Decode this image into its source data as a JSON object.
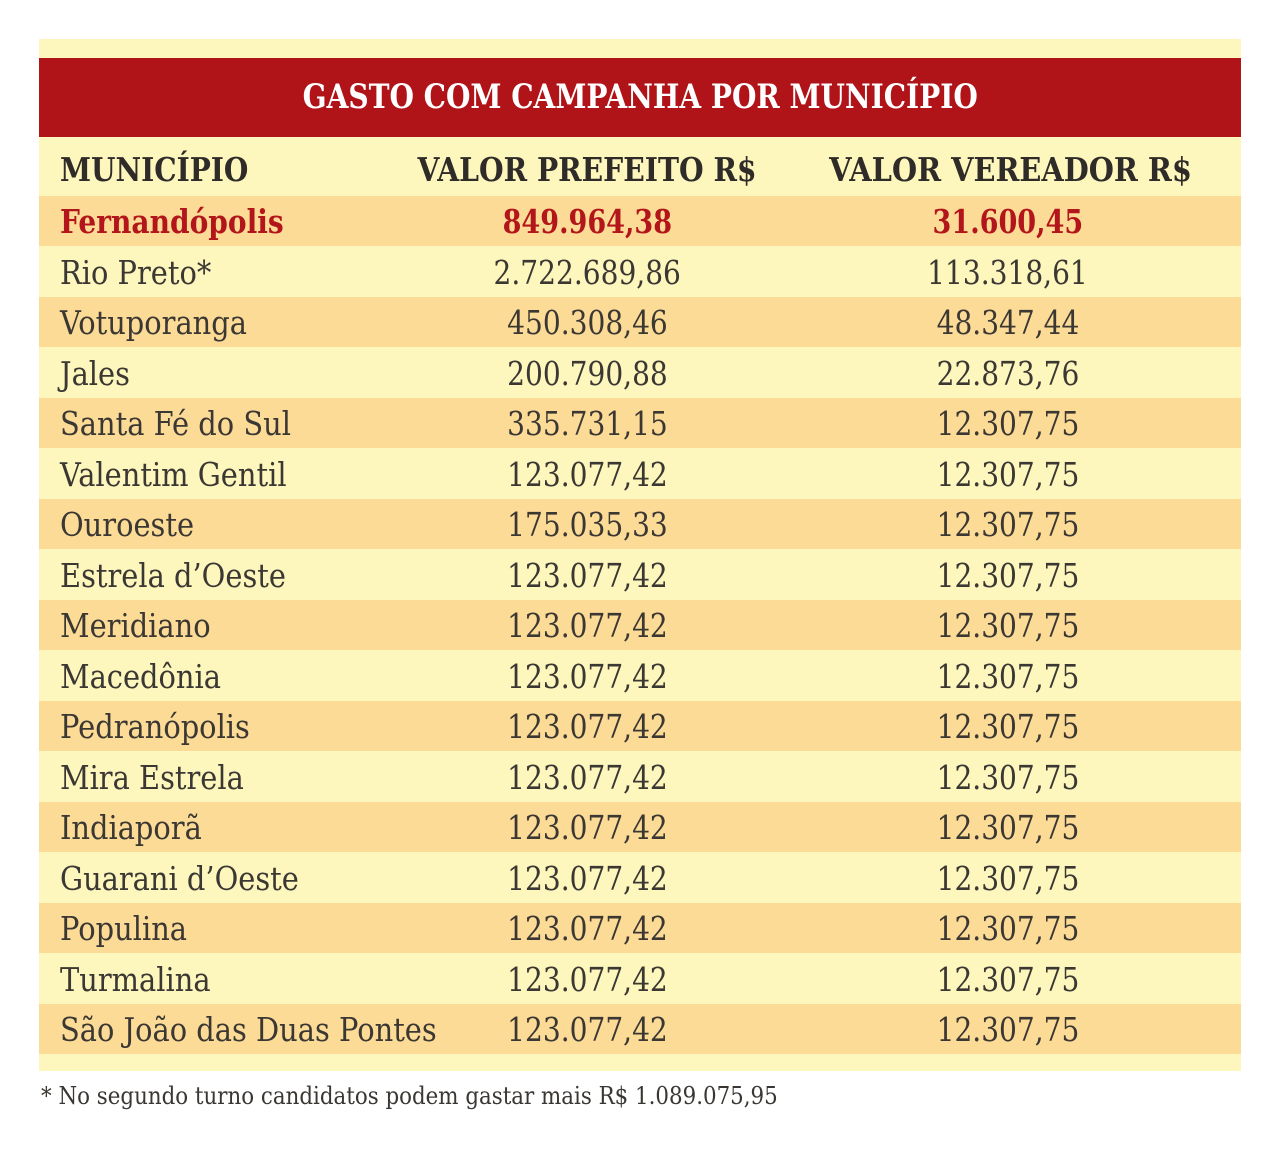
{
  "chart_data": {
    "type": "table",
    "title": "GASTO COM CAMPANHA POR MUNICÍPIO",
    "columns": [
      "MUNICÍPIO",
      "VALOR PREFEITO R$",
      "VALOR VEREADOR R$"
    ],
    "rows": [
      {
        "municipio": "Fernandópolis",
        "valor_prefeito": "849.964,38",
        "valor_vereador": "31.600,45",
        "highlight": true
      },
      {
        "municipio": "Rio Preto*",
        "valor_prefeito": "2.722.689,86",
        "valor_vereador": "113.318,61",
        "highlight": false
      },
      {
        "municipio": "Votuporanga",
        "valor_prefeito": "450.308,46",
        "valor_vereador": "48.347,44",
        "highlight": false
      },
      {
        "municipio": "Jales",
        "valor_prefeito": "200.790,88",
        "valor_vereador": "22.873,76",
        "highlight": false
      },
      {
        "municipio": "Santa Fé do Sul",
        "valor_prefeito": "335.731,15",
        "valor_vereador": "12.307,75",
        "highlight": false
      },
      {
        "municipio": "Valentim Gentil",
        "valor_prefeito": "123.077,42",
        "valor_vereador": "12.307,75",
        "highlight": false
      },
      {
        "municipio": "Ouroeste",
        "valor_prefeito": "175.035,33",
        "valor_vereador": "12.307,75",
        "highlight": false
      },
      {
        "municipio": "Estrela d’Oeste",
        "valor_prefeito": "123.077,42",
        "valor_vereador": "12.307,75",
        "highlight": false
      },
      {
        "municipio": "Meridiano",
        "valor_prefeito": "123.077,42",
        "valor_vereador": "12.307,75",
        "highlight": false
      },
      {
        "municipio": "Macedônia",
        "valor_prefeito": "123.077,42",
        "valor_vereador": "12.307,75",
        "highlight": false
      },
      {
        "municipio": "Pedranópolis",
        "valor_prefeito": "123.077,42",
        "valor_vereador": "12.307,75",
        "highlight": false
      },
      {
        "municipio": "Mira Estrela",
        "valor_prefeito": "123.077,42",
        "valor_vereador": "12.307,75",
        "highlight": false
      },
      {
        "municipio": "Indiaporã",
        "valor_prefeito": "123.077,42",
        "valor_vereador": "12.307,75",
        "highlight": false
      },
      {
        "municipio": "Guarani d’Oeste",
        "valor_prefeito": "123.077,42",
        "valor_vereador": "12.307,75",
        "highlight": false
      },
      {
        "municipio": "Populina",
        "valor_prefeito": "123.077,42",
        "valor_vereador": "12.307,75",
        "highlight": false
      },
      {
        "municipio": "Turmalina",
        "valor_prefeito": "123.077,42",
        "valor_vereador": "12.307,75",
        "highlight": false
      },
      {
        "municipio": "São João das Duas Pontes",
        "valor_prefeito": "123.077,42",
        "valor_vereador": "12.307,75",
        "highlight": false
      }
    ],
    "footnote": "* No segundo turno candidatos podem gastar mais R$ 1.089.075,95"
  },
  "colors": {
    "page_background": "#FFFFFF",
    "card_background": "#FDF6BD",
    "stripe_background": "#FCDB96",
    "title_bar_background": "#B01318",
    "title_text": "#FFFFFF",
    "header_text": "#2E2B28",
    "body_text": "#3B3733",
    "highlight_text": "#B2161B"
  }
}
